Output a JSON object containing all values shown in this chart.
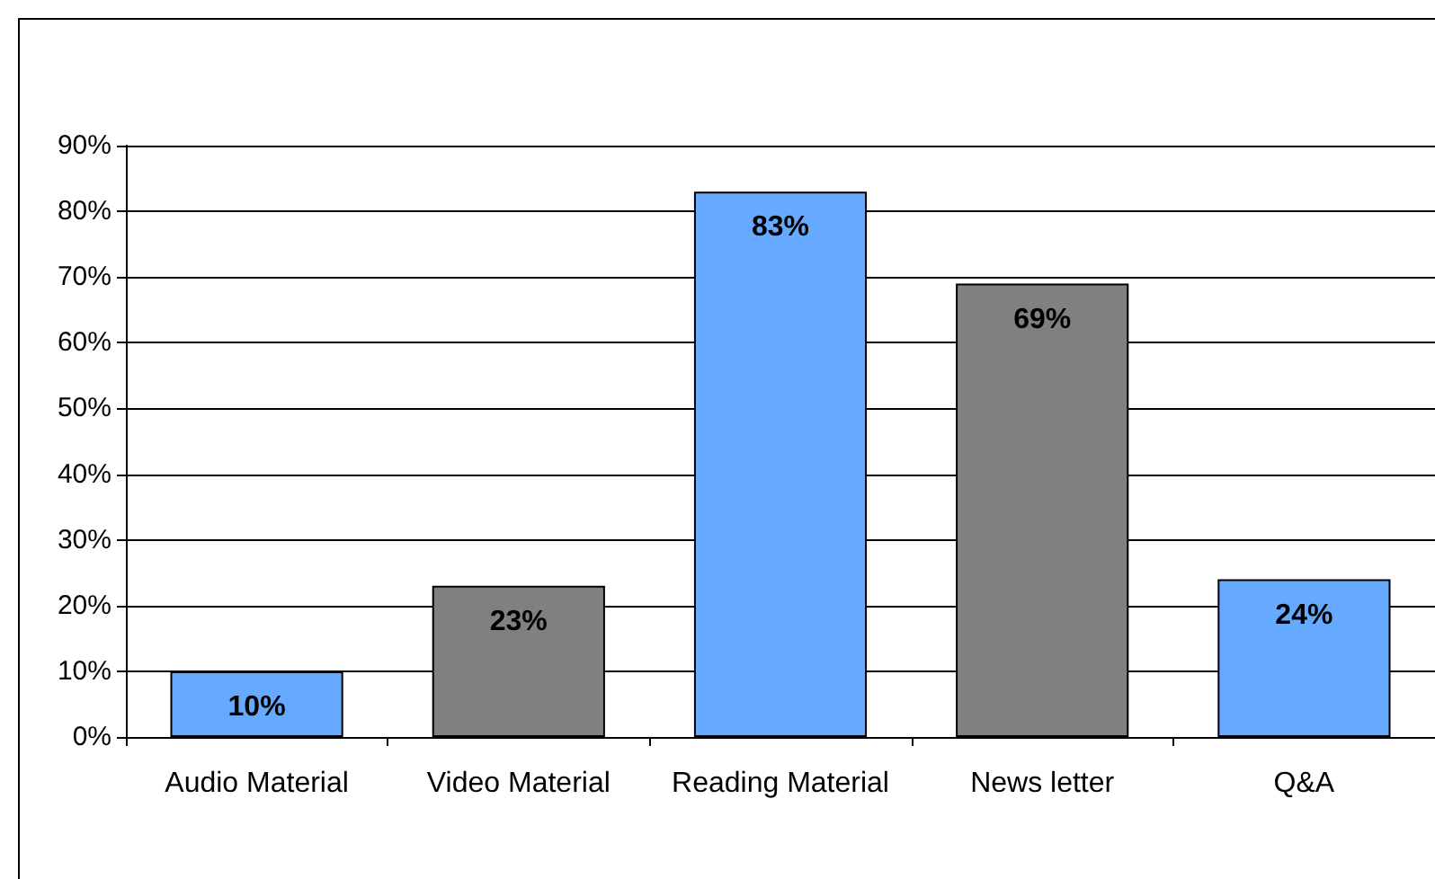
{
  "chart_data": {
    "type": "bar",
    "categories": [
      "Audio Material",
      "Video Material",
      "Reading Material",
      "News letter",
      "Q&A"
    ],
    "values": [
      10,
      23,
      83,
      69,
      24
    ],
    "colors": [
      "#66aaff",
      "#808080",
      "#66aaff",
      "#808080",
      "#66aaff"
    ],
    "value_labels": [
      "10%",
      "23%",
      "83%",
      "69%",
      "24%"
    ],
    "ylim": [
      0,
      90
    ],
    "yticks": [
      {
        "value": 0,
        "label": "0%"
      },
      {
        "value": 10,
        "label": "10%"
      },
      {
        "value": 20,
        "label": "20%"
      },
      {
        "value": 30,
        "label": "30%"
      },
      {
        "value": 40,
        "label": "40%"
      },
      {
        "value": 50,
        "label": "50%"
      },
      {
        "value": 60,
        "label": "60%"
      },
      {
        "value": 70,
        "label": "70%"
      },
      {
        "value": 80,
        "label": "80%"
      },
      {
        "value": 90,
        "label": "90%"
      }
    ],
    "grid": "y"
  }
}
